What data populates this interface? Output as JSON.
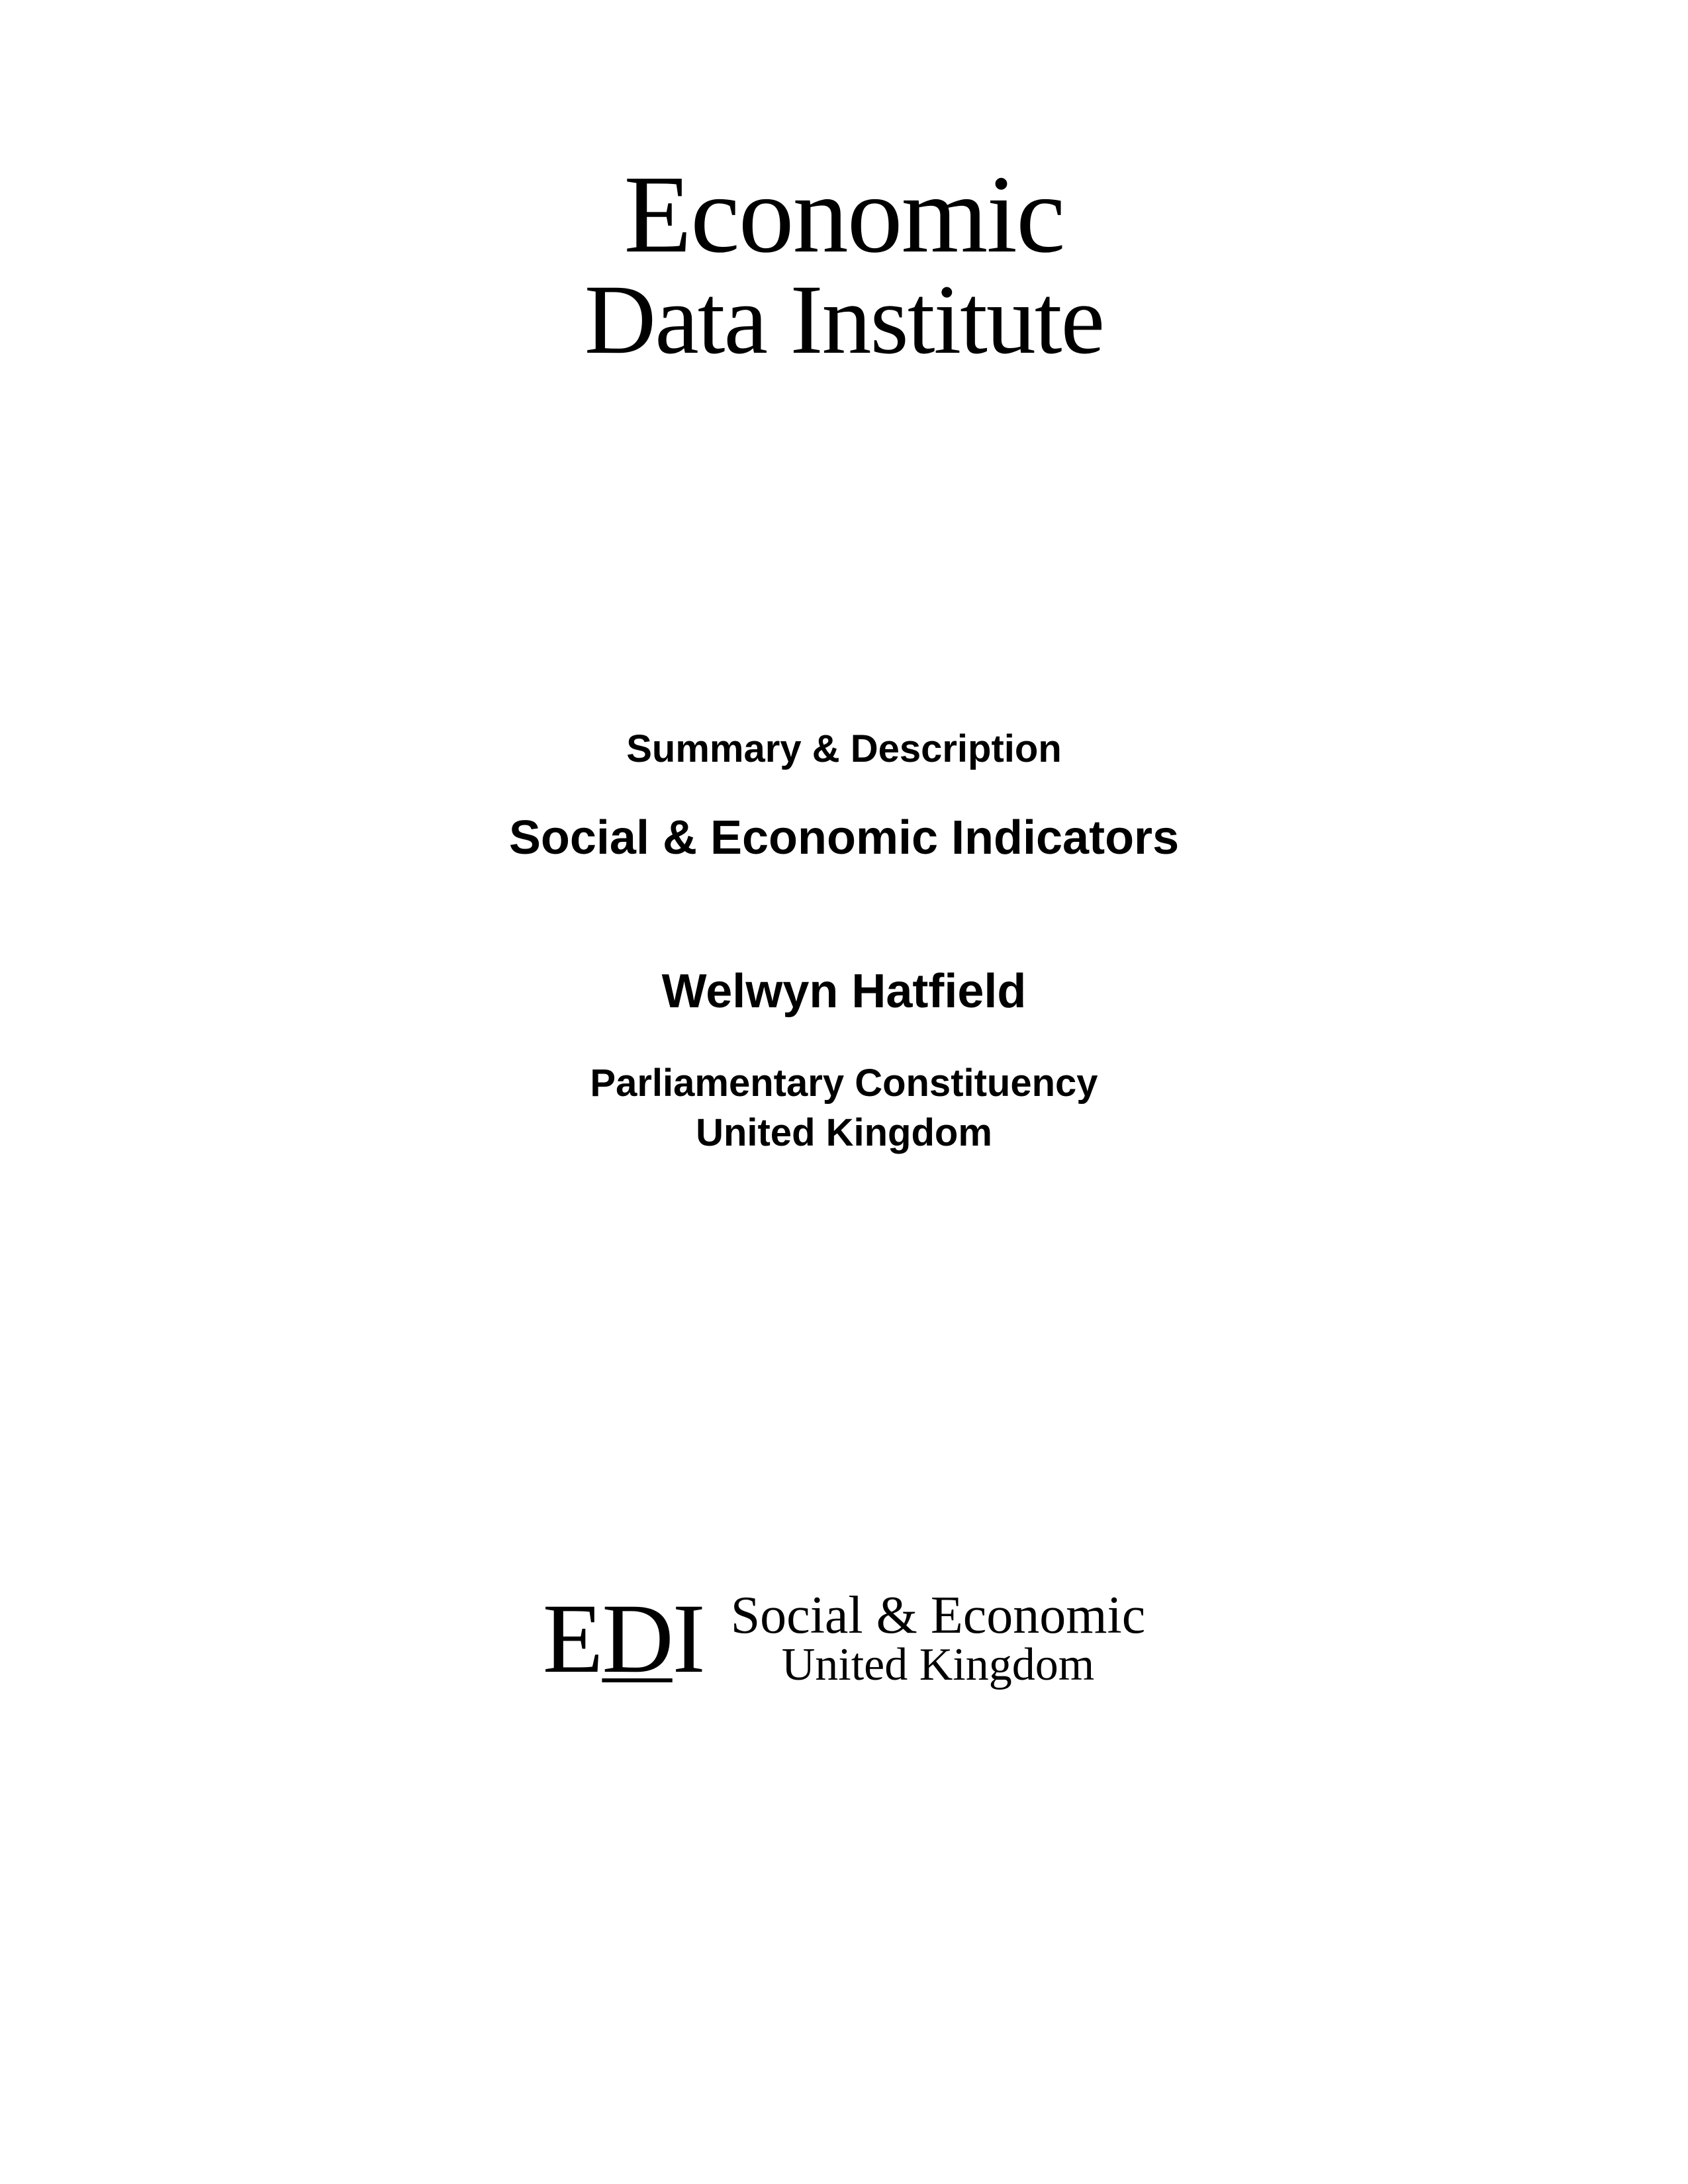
{
  "top_logo": {
    "line1": "Economic",
    "line2": "Data Institute"
  },
  "content": {
    "summary_label": "Summary & Description",
    "main_title": "Social & Economic Indicators",
    "region_name": "Welwyn Hatfield",
    "subtitle_line1": "Parliamentary Constituency",
    "subtitle_line2": "United Kingdom"
  },
  "bottom_logo": {
    "mark_e": "E",
    "mark_d": "D",
    "mark_i": "I",
    "line1": "Social & Economic",
    "line2": "United Kingdom"
  },
  "colors": {
    "background": "#ffffff",
    "text": "#000000"
  }
}
